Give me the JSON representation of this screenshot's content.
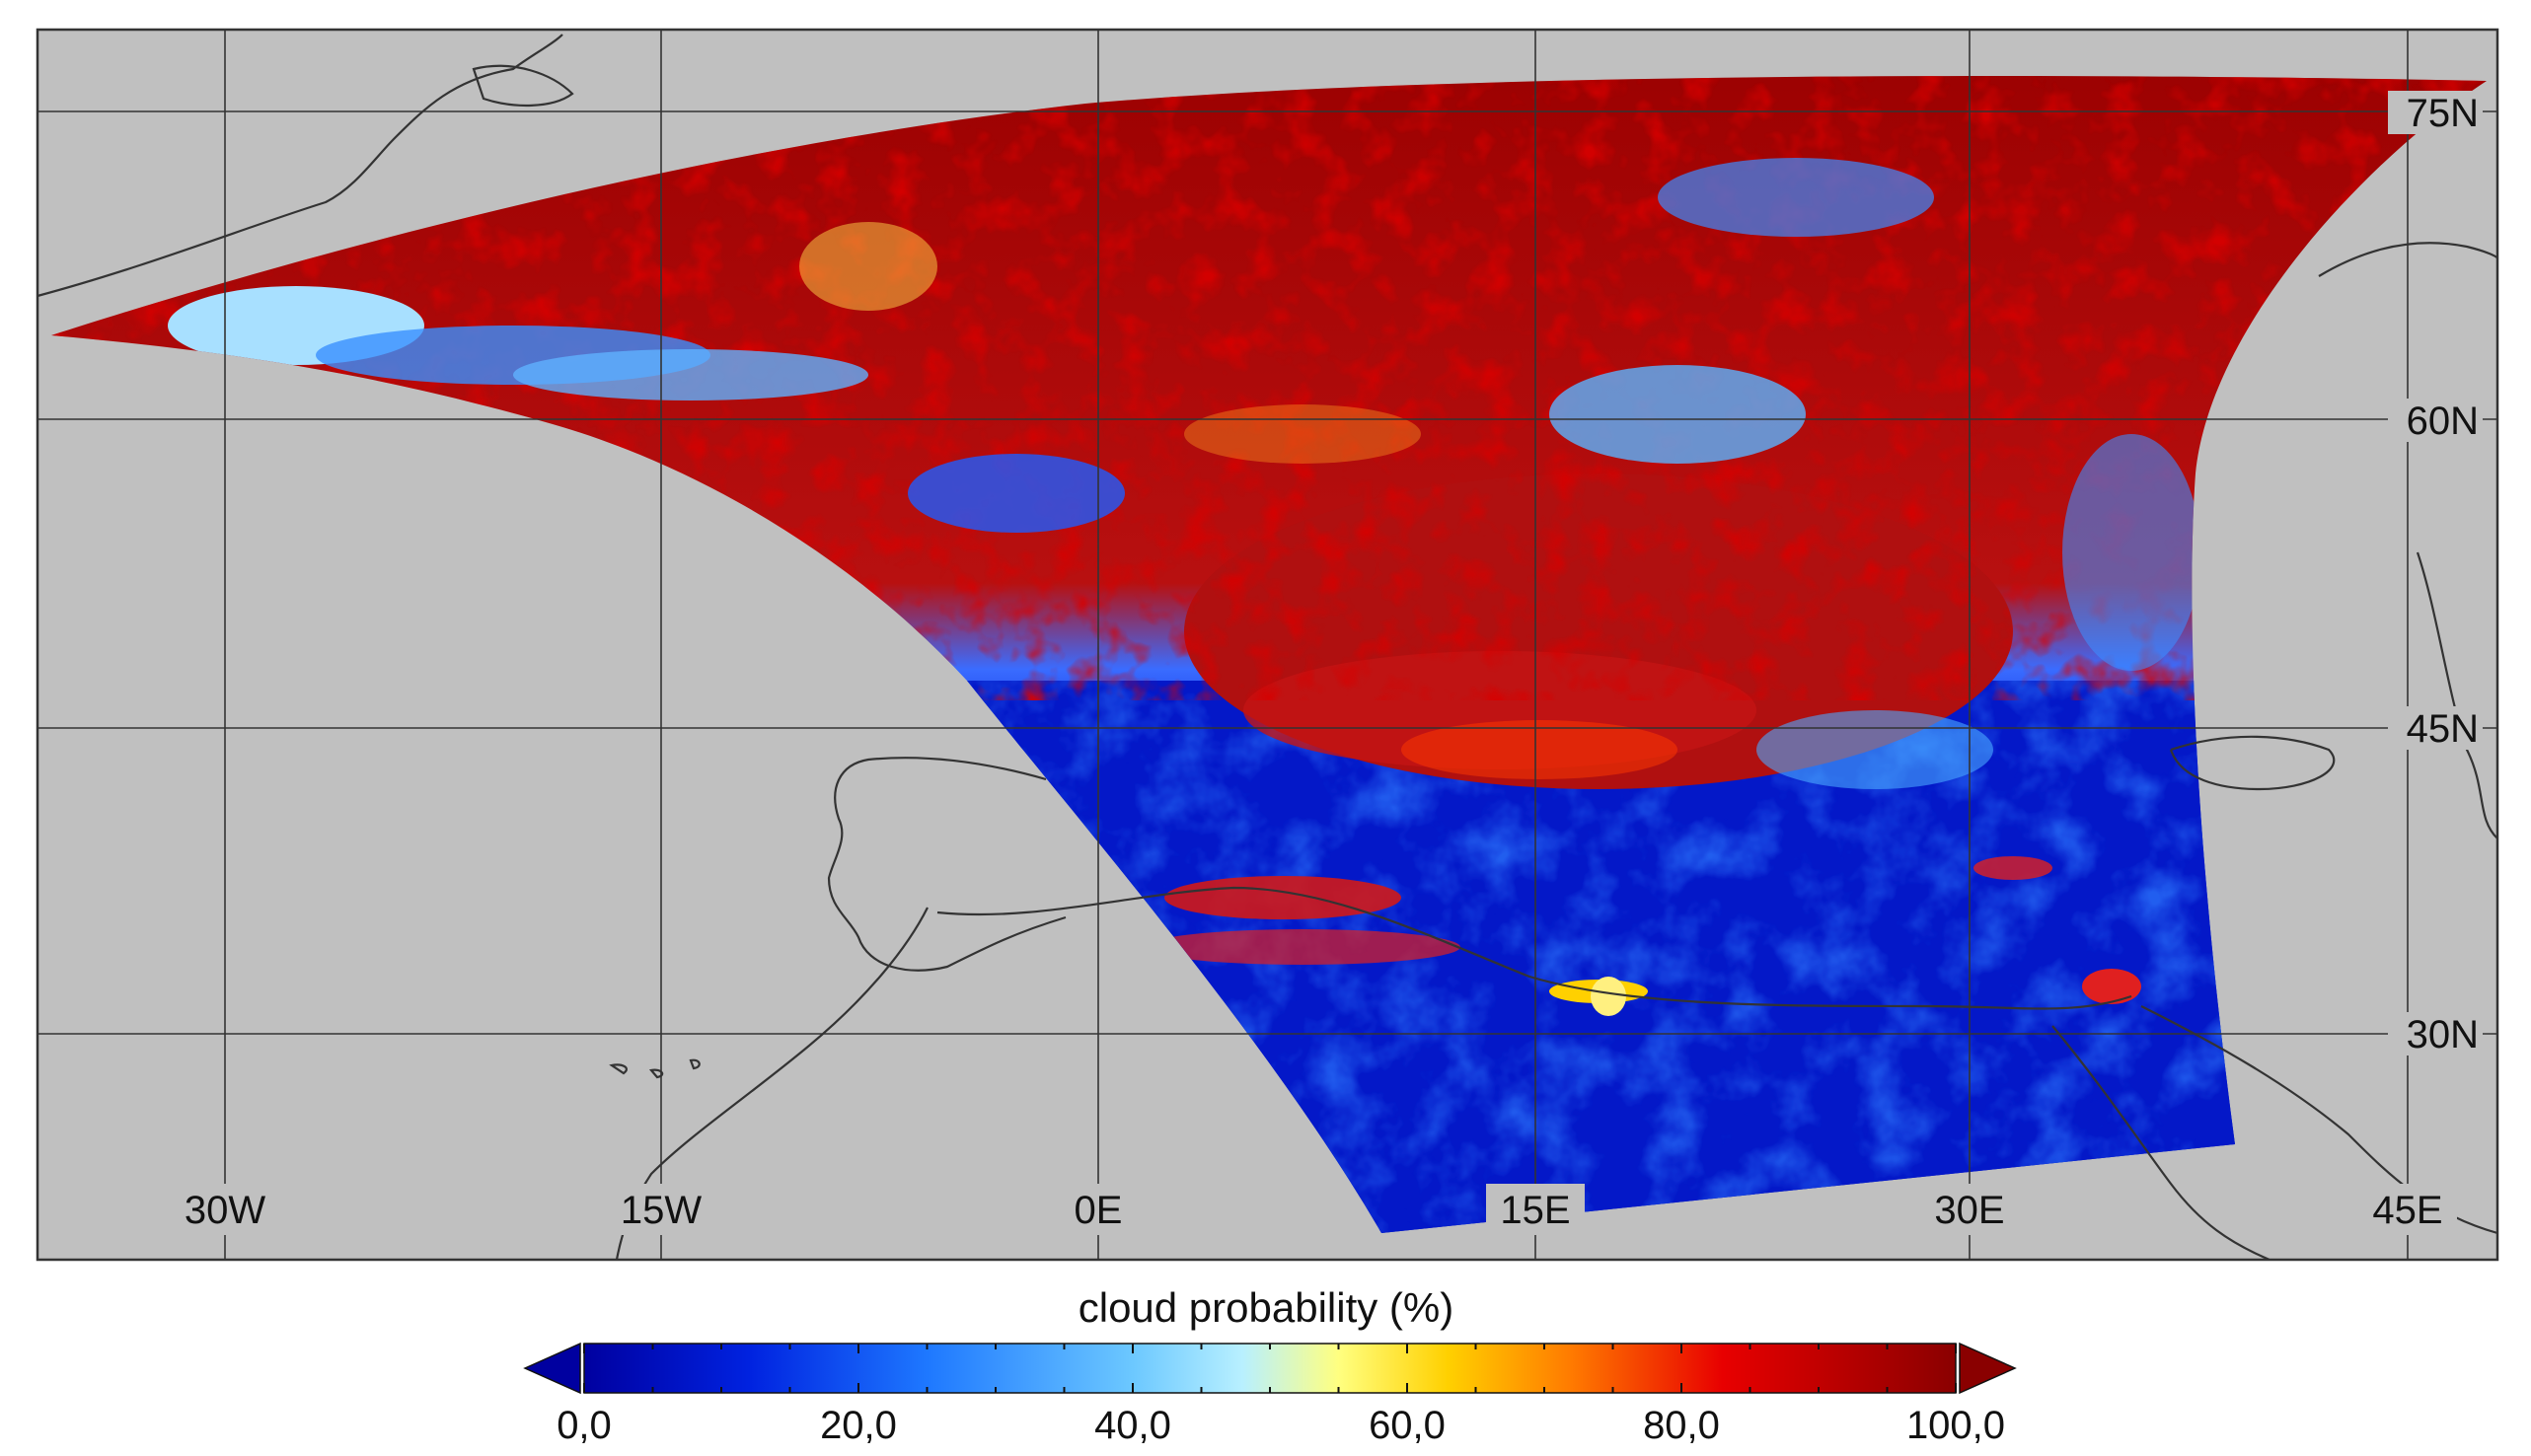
{
  "map": {
    "longitude_labels": [
      "30W",
      "15W",
      "0E",
      "15E",
      "30E",
      "45E"
    ],
    "latitude_labels": [
      "75N",
      "60N",
      "45N",
      "30N"
    ],
    "background_color": "#c0c0c0",
    "graticule_color": "#333333",
    "coastline_color": "#333333"
  },
  "colorbar": {
    "title": "cloud probability (%)",
    "tick_labels": [
      "0,0",
      "20,0",
      "40,0",
      "60,0",
      "80,0",
      "100,0"
    ],
    "min": 0,
    "max": 100,
    "extend": "both",
    "colormap": [
      "#0000a0",
      "#0033ff",
      "#3a9cff",
      "#a8e6ff",
      "#ffffa0",
      "#ffcc00",
      "#ff6a00",
      "#e00000",
      "#8a0000"
    ]
  }
}
